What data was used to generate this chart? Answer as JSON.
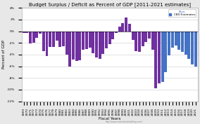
{
  "title": "Budget Surplus / Deficit as Percent of GDP [2011-2021 estimates]",
  "xlabel": "Fiscal Years",
  "ylabel": "Percent of GDP",
  "years": [
    1969,
    1970,
    1971,
    1972,
    1973,
    1974,
    1975,
    1976,
    1977,
    1978,
    1979,
    1980,
    1981,
    1982,
    1983,
    1984,
    1985,
    1986,
    1987,
    1988,
    1989,
    1990,
    1991,
    1992,
    1993,
    1994,
    1995,
    1996,
    1997,
    1998,
    1999,
    2000,
    2001,
    2002,
    2003,
    2004,
    2005,
    2006,
    2007,
    2008,
    2009,
    2010,
    2011,
    2012,
    2013,
    2014,
    2015,
    2016,
    2017,
    2018,
    2019,
    2020,
    2021
  ],
  "values": [
    -0.3,
    -0.3,
    -2.1,
    -2.0,
    -1.1,
    -0.4,
    -3.4,
    -4.2,
    -2.7,
    -2.7,
    -1.6,
    -2.7,
    -2.6,
    -4.0,
    -6.0,
    -4.8,
    -5.1,
    -5.0,
    -3.2,
    -3.1,
    -2.8,
    -3.8,
    -4.5,
    -4.7,
    -3.9,
    -2.9,
    -2.2,
    -1.4,
    -0.3,
    0.8,
    1.4,
    2.4,
    1.3,
    -1.5,
    -3.4,
    -3.5,
    -2.6,
    -1.9,
    -1.2,
    -3.2,
    -9.8,
    -8.9,
    -8.7,
    -7.0,
    -4.1,
    -2.8,
    -2.4,
    -3.2,
    -3.5,
    -4.0,
    -4.7,
    -5.7,
    -6.1
  ],
  "bar_colors": [
    "#7030a0",
    "#7030a0",
    "#7030a0",
    "#7030a0",
    "#7030a0",
    "#7030a0",
    "#7030a0",
    "#7030a0",
    "#7030a0",
    "#7030a0",
    "#7030a0",
    "#7030a0",
    "#7030a0",
    "#7030a0",
    "#7030a0",
    "#7030a0",
    "#7030a0",
    "#7030a0",
    "#7030a0",
    "#7030a0",
    "#7030a0",
    "#7030a0",
    "#7030a0",
    "#7030a0",
    "#7030a0",
    "#7030a0",
    "#7030a0",
    "#7030a0",
    "#7030a0",
    "#7030a0",
    "#7030a0",
    "#7030a0",
    "#7030a0",
    "#7030a0",
    "#7030a0",
    "#7030a0",
    "#7030a0",
    "#7030a0",
    "#7030a0",
    "#7030a0",
    "#7030a0",
    "#7030a0",
    "#4472c4",
    "#4472c4",
    "#4472c4",
    "#4472c4",
    "#4472c4",
    "#4472c4",
    "#4472c4",
    "#4472c4",
    "#4472c4",
    "#4472c4",
    "#4472c4"
  ],
  "ylim": [
    -12,
    4
  ],
  "yticks": [
    -12,
    -10,
    -8,
    -6,
    -4,
    -2,
    0,
    2,
    4
  ],
  "ytick_labels": [
    "-12%",
    "-10%",
    "-8%",
    "-6%",
    "-4%",
    "-2%",
    "0%",
    "2%",
    "4%"
  ],
  "bg_color": "#e8e8e8",
  "plot_bg_color": "#ffffff",
  "grid_color": "#cccccc",
  "title_fontsize": 5.0,
  "label_fontsize": 4.0,
  "tick_fontsize": 3.2,
  "url_text": "http://www.calculatedriskblog.com/"
}
